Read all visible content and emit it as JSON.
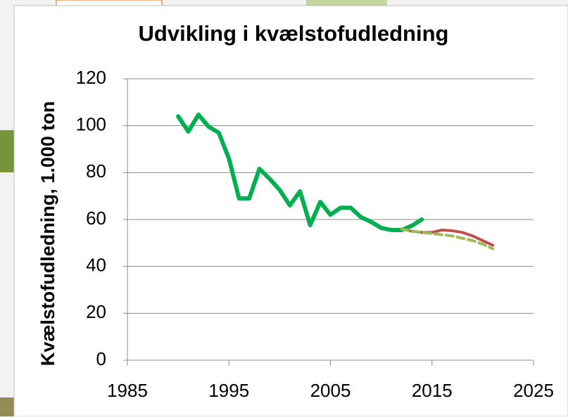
{
  "chart_data": {
    "type": "line",
    "title": "Udvikling i kvælstofudledning",
    "y_label": "Kvælstofudledning, 1.000 ton",
    "xlim": [
      1985,
      2025
    ],
    "xticks": [
      1985,
      1995,
      2005,
      2015,
      2025
    ],
    "ylim": [
      0,
      120
    ],
    "yticks": [
      0,
      20,
      40,
      60,
      80,
      100,
      120
    ],
    "grid": true,
    "series": [
      {
        "color": "#00b050",
        "width": 6,
        "dashed": false,
        "x": [
          1990,
          1991,
          1992,
          1993,
          1994,
          1995,
          1996,
          1997,
          1998,
          1999,
          2000,
          2001,
          2002,
          2003,
          2004,
          2005,
          2006,
          2007,
          2008,
          2009,
          2010,
          2011,
          2012,
          2013,
          2014
        ],
        "values": [
          104,
          97.5,
          104.7,
          99.6,
          97,
          86,
          69,
          69,
          81.6,
          77.4,
          72.6,
          66,
          72,
          57.6,
          67.5,
          62,
          65,
          65,
          61,
          59,
          56.4,
          55.5,
          55.5,
          57.3,
          60
        ]
      },
      {
        "color": "#c0504d",
        "width": 4,
        "dashed": false,
        "x": [
          2012,
          2013,
          2014,
          2015,
          2016,
          2017,
          2018,
          2019,
          2020,
          2021
        ],
        "values": [
          56,
          55,
          54.5,
          54.5,
          55.5,
          55.2,
          54.5,
          53,
          51,
          49
        ]
      },
      {
        "color": "#9bbb59",
        "width": 4,
        "dashed": true,
        "x": [
          2012,
          2013,
          2014,
          2015,
          2016,
          2017,
          2018,
          2019,
          2020,
          2021
        ],
        "values": [
          56,
          55,
          54.5,
          54,
          53.5,
          53,
          52,
          51,
          49.5,
          47.5
        ]
      }
    ]
  }
}
